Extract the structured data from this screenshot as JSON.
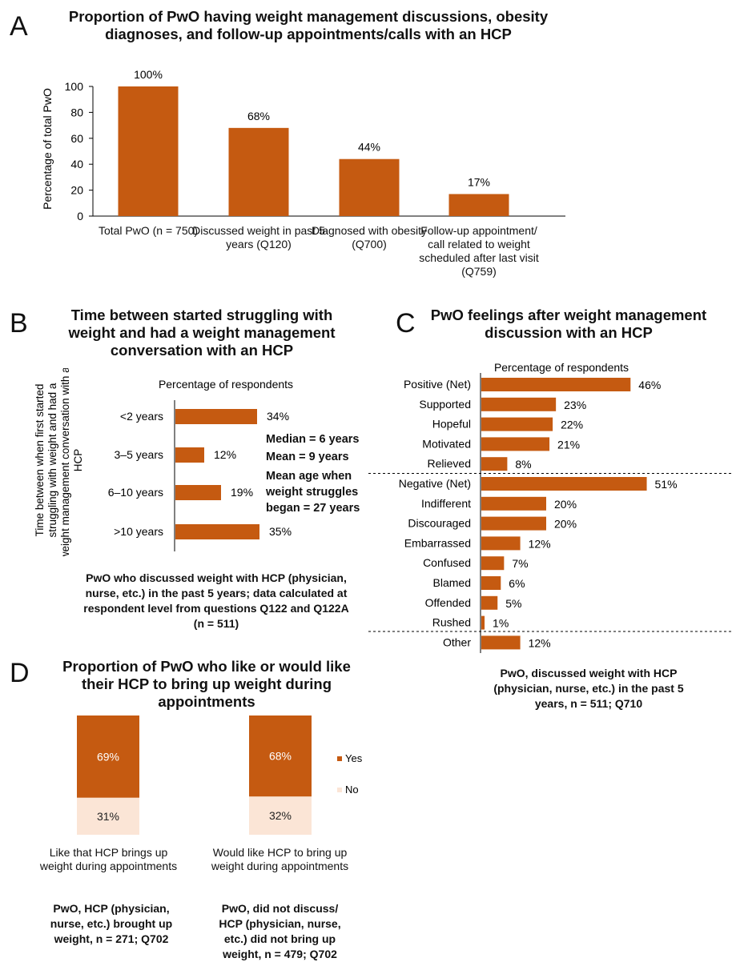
{
  "panelA": {
    "letter": "A",
    "title": "Proportion of PwO having weight management discussions, obesity diagnoses, and follow-up appointments/calls with an HCP"
  },
  "panelB": {
    "letter": "B",
    "title": "Time between started struggling with weight and had a weight management conversation with an HCP",
    "stats": [
      "Median = 6 years",
      "Mean = 9 years",
      "Mean age when weight struggles began = 27 years"
    ],
    "note": "PwO who discussed weight with HCP (physician, nurse, etc.) in the past 5 years; data calculated at respondent level from questions Q122 and Q122A (n = 511)"
  },
  "panelC": {
    "letter": "C",
    "title": "PwO feelings after weight management discussion with an HCP",
    "note": "PwO, discussed weight with HCP (physician, nurse, etc.) in the past 5 years, n = 511; Q710"
  },
  "panelD": {
    "letter": "D",
    "title": "Proportion of PwO who like or would like their HCP to bring up weight during appointments",
    "notes": [
      "PwO, HCP (physician, nurse, etc.) brought up weight, n = 271; Q702",
      "PwO, did not discuss/ HCP (physician, nurse, etc.) did not bring up weight, n = 479; Q702"
    ]
  },
  "colors": {
    "bar": "#c55a11",
    "no": "#fbe5d6"
  },
  "chart_data": [
    {
      "type": "bar",
      "panel": "A",
      "categories": [
        "Total PwO (n = 750)",
        "Discussed weight in past 5 years (Q120)",
        "Diagnosed with obesity (Q700)",
        "Follow-up appointment/ call related to weight scheduled after last visit (Q759)"
      ],
      "values": [
        100,
        68,
        44,
        17
      ],
      "data_labels": [
        "100%",
        "68%",
        "44%",
        "17%"
      ],
      "ylabel": "Percentage of total PwO",
      "yticks": [
        "0",
        "20",
        "40",
        "60",
        "80",
        "100"
      ],
      "ylim": [
        0,
        100
      ],
      "grid": false
    },
    {
      "type": "bar",
      "panel": "B",
      "orientation": "horizontal",
      "categories": [
        "<2 years",
        "3–5 years",
        "6–10 years",
        ">10 years"
      ],
      "values": [
        34,
        12,
        19,
        35
      ],
      "data_labels": [
        "34%",
        "12%",
        "19%",
        "35%"
      ],
      "xlabel": "Percentage of respondents",
      "ylabel": "Time between when first started struggling with weight and had a weight management conversation with an HCP",
      "xlim": [
        0,
        40
      ]
    },
    {
      "type": "bar",
      "panel": "C",
      "orientation": "horizontal",
      "categories": [
        "Positive (Net)",
        "Supported",
        "Hopeful",
        "Motivated",
        "Relieved",
        "Negative (Net)",
        "Indifferent",
        "Discouraged",
        "Embarrassed",
        "Confused",
        "Blamed",
        "Offended",
        "Rushed",
        "Other"
      ],
      "values": [
        46,
        23,
        22,
        21,
        8,
        51,
        20,
        20,
        12,
        7,
        6,
        5,
        1,
        12
      ],
      "data_labels": [
        "46%",
        "23%",
        "22%",
        "21%",
        "8%",
        "51%",
        "20%",
        "20%",
        "12%",
        "7%",
        "6%",
        "5%",
        "1%",
        "12%"
      ],
      "xlabel": "Percentage of respondents",
      "xlim": [
        0,
        60
      ]
    },
    {
      "type": "bar",
      "panel": "D",
      "stacked": true,
      "categories": [
        "Like that HCP brings up weight during appointments",
        "Would like HCP to bring up weight during appointments"
      ],
      "series": [
        {
          "name": "Yes",
          "values": [
            69,
            68
          ],
          "data_labels": [
            "69%",
            "68%"
          ]
        },
        {
          "name": "No",
          "values": [
            31,
            32
          ],
          "data_labels": [
            "31%",
            "32%"
          ]
        }
      ],
      "legend": "right",
      "ylim": [
        0,
        100
      ]
    }
  ]
}
